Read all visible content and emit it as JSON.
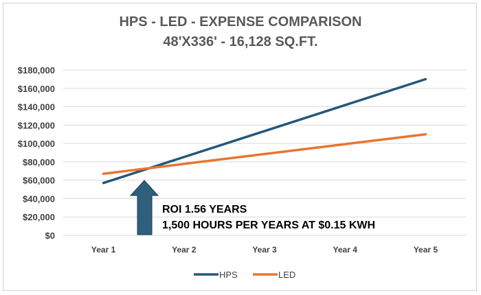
{
  "chart_data": {
    "type": "line",
    "title": "HPS - LED - EXPENSE COMPARISON",
    "subtitle": "48'X336' - 16,128 SQ.FT.",
    "categories": [
      "Year 1",
      "Year 2",
      "Year 3",
      "Year 4",
      "Year 5"
    ],
    "series": [
      {
        "name": "HPS",
        "color": "#245878",
        "values": [
          57000,
          85250,
          113500,
          141750,
          170000
        ]
      },
      {
        "name": "LED",
        "color": "#e87530",
        "values": [
          67000,
          77750,
          88500,
          99250,
          110000
        ]
      }
    ],
    "ylim": [
      0,
      180000
    ],
    "yticks": [
      "$0",
      "$20,000",
      "$40,000",
      "$60,000",
      "$80,000",
      "$100,000",
      "$120,000",
      "$140,000",
      "$160,000",
      "$180,000"
    ],
    "grid": true,
    "legend": "bottom",
    "annotation": {
      "lines": [
        "ROI 1.56 YEARS",
        "1,500 HOURS PER YEARS AT $0.15 KWH"
      ],
      "arrow_color": "#2e5f7c"
    }
  }
}
